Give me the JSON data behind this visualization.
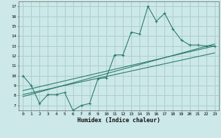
{
  "xlabel": "Humidex (Indice chaleur)",
  "ylabel": "",
  "xlim": [
    -0.5,
    23.5
  ],
  "ylim": [
    6.5,
    17.5
  ],
  "xticks": [
    0,
    1,
    2,
    3,
    4,
    5,
    6,
    7,
    8,
    9,
    10,
    11,
    12,
    13,
    14,
    15,
    16,
    17,
    18,
    19,
    20,
    21,
    22,
    23
  ],
  "yticks": [
    7,
    8,
    9,
    10,
    11,
    12,
    13,
    14,
    15,
    16,
    17
  ],
  "bg_color": "#cce8e8",
  "line_color": "#2a7a6a",
  "grid_color": "#aacece",
  "main_x": [
    0,
    1,
    2,
    3,
    4,
    5,
    6,
    7,
    8,
    9,
    10,
    11,
    12,
    13,
    14,
    15,
    16,
    17,
    18,
    19,
    20,
    21,
    22,
    23
  ],
  "main_y": [
    10.0,
    9.0,
    7.2,
    8.1,
    8.1,
    8.3,
    6.5,
    7.0,
    7.2,
    9.7,
    9.8,
    12.1,
    12.1,
    14.4,
    14.2,
    17.0,
    15.5,
    16.3,
    14.7,
    13.6,
    13.1,
    13.1,
    13.0,
    13.0
  ],
  "trend1_x": [
    0,
    23
  ],
  "trend1_y": [
    8.5,
    13.0
  ],
  "trend2_x": [
    0,
    23
  ],
  "trend2_y": [
    8.1,
    12.3
  ],
  "trend3_x": [
    0,
    23
  ],
  "trend3_y": [
    7.9,
    13.2
  ]
}
